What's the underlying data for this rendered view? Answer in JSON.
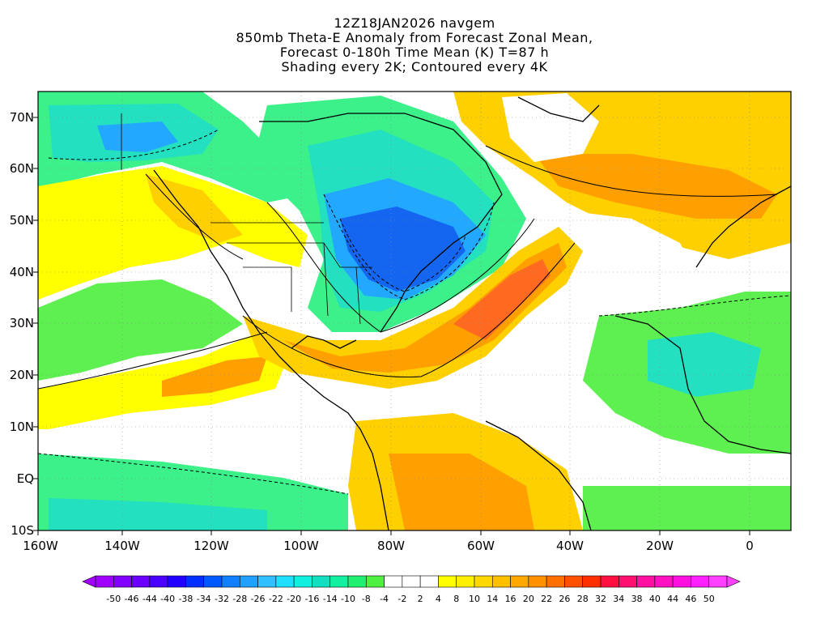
{
  "title_lines": [
    "12Z18JAN2026 navgem",
    "850mb Theta-E Anomaly from Forecast Zonal Mean,",
    "Forecast 0-180h Time Mean (K) T=87 h",
    "Shading every 2K; Contoured every 4K"
  ],
  "lat_labels": [
    "70N",
    "60N",
    "50N",
    "40N",
    "30N",
    "20N",
    "10N",
    "EQ",
    "10S"
  ],
  "lon_labels": [
    "160W",
    "140W",
    "120W",
    "100W",
    "80W",
    "60W",
    "40W",
    "20W",
    "0"
  ],
  "colorbar": {
    "labels": [
      "-50",
      "-46",
      "-44",
      "-40",
      "-38",
      "-34",
      "-32",
      "-28",
      "-26",
      "-22",
      "-20",
      "-16",
      "-14",
      "-10",
      "-8",
      "-4",
      "-2",
      "2",
      "4",
      "8",
      "10",
      "14",
      "16",
      "20",
      "22",
      "26",
      "28",
      "32",
      "34",
      "38",
      "40",
      "44",
      "46",
      "50"
    ],
    "colors": [
      "#a000ff",
      "#8200ff",
      "#6a00ff",
      "#4a00ff",
      "#2200ff",
      "#0030ff",
      "#0058ff",
      "#1080ff",
      "#20a0ff",
      "#30c0ff",
      "#20e0ff",
      "#10f0e0",
      "#10e0c0",
      "#10f0a0",
      "#20f070",
      "#50f040",
      "#ffffff",
      "#ffffff",
      "#ffffff",
      "#ffff00",
      "#fff000",
      "#ffd800",
      "#ffc000",
      "#ffa800",
      "#ff9000",
      "#ff7000",
      "#ff5000",
      "#ff3000",
      "#ff1040",
      "#ff1070",
      "#ff10a0",
      "#ff10c0",
      "#ff10e0",
      "#ff20ff",
      "#ff40ff"
    ]
  },
  "map_colors": {
    "ocean_neutral": "#ffffff",
    "cold_deep": "#1466f0",
    "cold_mid": "#22a8ff",
    "cold_light": "#22e0c0",
    "cold_pale": "#3cf08a",
    "cool_faint": "#5ef050",
    "warm_light": "#ffff00",
    "warm_mid": "#ffd000",
    "warm_orange": "#ffa000",
    "warm_deep": "#ff6a20"
  }
}
